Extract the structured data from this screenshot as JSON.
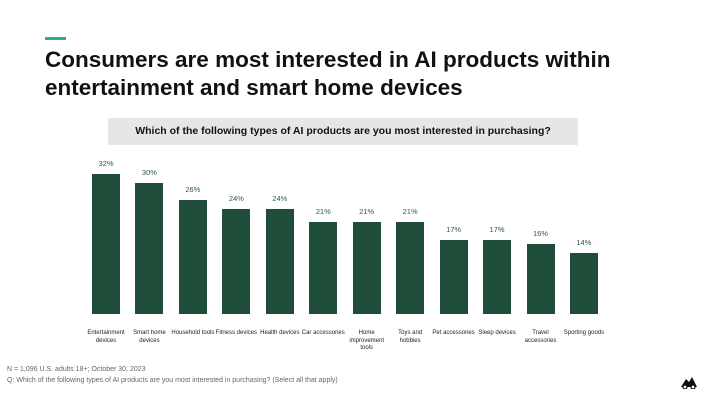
{
  "chart_data": {
    "type": "bar",
    "title": "Consumers are most interested in AI products within entertainment and smart home devices",
    "subtitle": "Which of the following types of AI products are you most interested in purchasing?",
    "categories": [
      "Entertainment devices",
      "Smart home devices",
      "Household tools",
      "Fitness devices",
      "Health devices",
      "Car accessories",
      "Home improvement tools",
      "Toys and hobbies",
      "Pet accessories",
      "Sleep devices",
      "Travel accessories",
      "Sporting goods"
    ],
    "values": [
      32,
      30,
      26,
      24,
      24,
      21,
      21,
      21,
      17,
      17,
      16,
      14
    ],
    "value_labels": [
      "32%",
      "30%",
      "26%",
      "24%",
      "24%",
      "21%",
      "21%",
      "21%",
      "17%",
      "17%",
      "16%",
      "14%"
    ],
    "color": "#1f4d3a"
  },
  "footnotes": [
    "N = 1,096 U.S. adults 18+; October 30, 2023",
    "Q: Which of the following types of AI products are you most interested in purchasing? (Select all that apply)"
  ]
}
